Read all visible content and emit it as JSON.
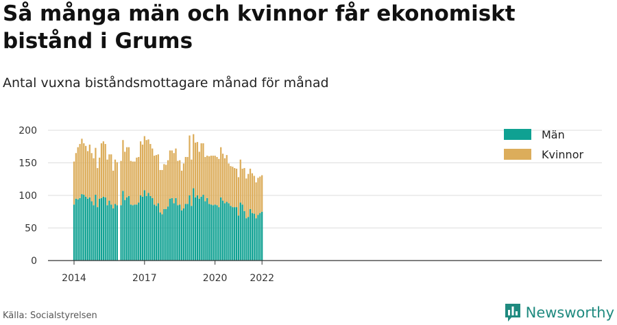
{
  "header": {
    "title": "Så många män och kvinnor får ekonomiskt bistånd i Grums",
    "subtitle": "Antal vuxna biståndsmottagare månad för månad"
  },
  "footer": {
    "source": "Källa: Socialstyrelsen",
    "brand": "Newsworthy"
  },
  "colors": {
    "men": "#0fa192",
    "women": "#dcad5b",
    "grid": "#dddddd",
    "axis": "#333333",
    "brand": "#1f8a7f"
  },
  "chart_data": {
    "type": "bar",
    "stacked": true,
    "ylim": [
      0,
      200
    ],
    "yticks": [
      0,
      50,
      100,
      150,
      200
    ],
    "grid": true,
    "legend_position": "top-right",
    "x_start": "2014-01",
    "xtick_labels": [
      {
        "label": "2014",
        "index": 0
      },
      {
        "label": "2017",
        "index": 36
      },
      {
        "label": "2020",
        "index": 72
      },
      {
        "label": "2022",
        "index": 96
      }
    ],
    "series": [
      {
        "name": "Män",
        "values": [
          86,
          95,
          94,
          96,
          102,
          101,
          98,
          95,
          97,
          91,
          85,
          101,
          82,
          95,
          96,
          98,
          97,
          85,
          92,
          86,
          80,
          87,
          85,
          null,
          85,
          107,
          93,
          97,
          99,
          86,
          85,
          86,
          86,
          89,
          100,
          98,
          108,
          99,
          104,
          99,
          96,
          86,
          84,
          88,
          74,
          71,
          79,
          79,
          83,
          95,
          96,
          88,
          96,
          85,
          86,
          77,
          80,
          87,
          87,
          100,
          84,
          111,
          97,
          100,
          95,
          98,
          101,
          91,
          96,
          87,
          86,
          85,
          86,
          85,
          82,
          97,
          92,
          88,
          90,
          88,
          84,
          82,
          82,
          82,
          69,
          89,
          86,
          76,
          65,
          67,
          79,
          73,
          72,
          65,
          70,
          73,
          75
        ]
      },
      {
        "name": "Kvinnor",
        "values": [
          66,
          70,
          80,
          83,
          85,
          79,
          78,
          73,
          81,
          74,
          72,
          72,
          60,
          63,
          84,
          85,
          82,
          70,
          71,
          77,
          58,
          68,
          66,
          null,
          68,
          78,
          74,
          77,
          75,
          67,
          67,
          66,
          72,
          70,
          83,
          80,
          83,
          86,
          82,
          80,
          76,
          75,
          78,
          75,
          65,
          68,
          69,
          68,
          71,
          74,
          73,
          77,
          76,
          68,
          68,
          61,
          69,
          72,
          72,
          92,
          71,
          83,
          84,
          82,
          72,
          82,
          79,
          68,
          65,
          73,
          75,
          76,
          75,
          74,
          74,
          77,
          72,
          69,
          72,
          61,
          61,
          62,
          60,
          59,
          59,
          66,
          55,
          66,
          61,
          66,
          62,
          61,
          58,
          55,
          57,
          56,
          56
        ]
      }
    ]
  }
}
